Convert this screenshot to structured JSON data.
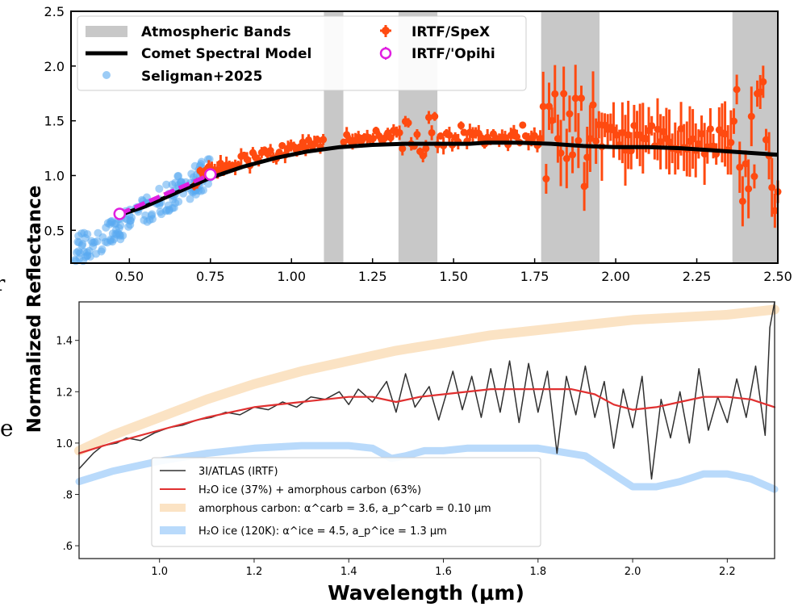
{
  "figure": {
    "ylabel": "Normalized Reflectance",
    "xlabel": "Wavelength (μm)",
    "edge_glyphs": [
      "r",
      "e"
    ]
  },
  "chart_data": [
    {
      "type": "scatter",
      "xlim": [
        0.32,
        2.5
      ],
      "ylim": [
        0.2,
        2.5
      ],
      "x_ticks": [
        "0.50",
        "0.75",
        "1.00",
        "1.25",
        "1.50",
        "1.75",
        "2.00",
        "2.25",
        "2.50"
      ],
      "y_ticks": [
        "0.5",
        "1.0",
        "1.5",
        "2.0",
        "2.5"
      ],
      "legend": {
        "placement": "top-left",
        "entries": [
          "Atmospheric Bands",
          "Comet Spectral Model",
          "Seligman+2025",
          "IRTF/SpeX",
          "IRTF/'Opihi"
        ]
      },
      "atmospheric_bands": [
        [
          1.1,
          1.16
        ],
        [
          1.33,
          1.45
        ],
        [
          1.77,
          1.95
        ],
        [
          2.36,
          2.5
        ]
      ],
      "comet_model": {
        "x": [
          0.47,
          0.55,
          0.65,
          0.75,
          0.85,
          0.95,
          1.05,
          1.15,
          1.25,
          1.35,
          1.45,
          1.55,
          1.6,
          1.7,
          1.8,
          1.9,
          2.0,
          2.1,
          2.2,
          2.3,
          2.4,
          2.5
        ],
        "y": [
          0.64,
          0.72,
          0.85,
          0.98,
          1.08,
          1.16,
          1.22,
          1.26,
          1.28,
          1.29,
          1.29,
          1.29,
          1.3,
          1.3,
          1.29,
          1.27,
          1.26,
          1.26,
          1.25,
          1.23,
          1.21,
          1.19
        ]
      },
      "opihi": {
        "x": [
          0.47,
          0.75
        ],
        "y": [
          0.65,
          1.01
        ],
        "color": "#e020e0"
      },
      "seligman_color": "#5aaaf0",
      "speX_color": "#ff4a10",
      "model_color": "#000000",
      "band_color": "#c8c8c8"
    },
    {
      "type": "line",
      "xlim": [
        0.83,
        2.3
      ],
      "ylim": [
        0.55,
        1.55
      ],
      "x_ticks": [
        "1.0",
        "1.2",
        "1.4",
        "1.6",
        "1.8",
        "2.0",
        "2.2"
      ],
      "y_ticks": [
        ".6",
        ".8",
        "1.0",
        "1.2",
        "1.4"
      ],
      "legend": {
        "placement": "bottom-left",
        "entries": [
          "3I/ATLAS (IRTF)",
          "H₂O ice (37%) + amorphous carbon (63%)",
          "amorphous carbon: α^carb = 3.6, a_p^carb = 0.10 μm",
          "H₂O ice (120K): α^ice = 4.5, a_p^ice = 1.3 μm"
        ]
      },
      "series": [
        {
          "name": "H₂O ice (37%) + amorphous carbon (63%)",
          "color": "#e03030",
          "x": [
            0.83,
            0.9,
            1.0,
            1.1,
            1.2,
            1.3,
            1.4,
            1.45,
            1.5,
            1.55,
            1.6,
            1.7,
            1.8,
            1.87,
            1.92,
            1.96,
            2.0,
            2.05,
            2.1,
            2.15,
            2.2,
            2.25,
            2.3
          ],
          "y": [
            0.96,
            1.0,
            1.05,
            1.1,
            1.14,
            1.16,
            1.18,
            1.18,
            1.16,
            1.18,
            1.19,
            1.21,
            1.21,
            1.21,
            1.19,
            1.15,
            1.13,
            1.14,
            1.16,
            1.18,
            1.18,
            1.17,
            1.14
          ]
        },
        {
          "name": "amorphous carbon",
          "color": "#fbe3c4",
          "x": [
            0.83,
            0.9,
            1.0,
            1.1,
            1.2,
            1.3,
            1.4,
            1.5,
            1.6,
            1.7,
            1.8,
            1.9,
            2.0,
            2.1,
            2.2,
            2.3
          ],
          "y": [
            0.97,
            1.03,
            1.1,
            1.17,
            1.23,
            1.28,
            1.32,
            1.36,
            1.39,
            1.42,
            1.44,
            1.46,
            1.48,
            1.49,
            1.5,
            1.52
          ]
        },
        {
          "name": "H₂O ice (120K)",
          "color": "#b9dafb",
          "x": [
            0.83,
            0.9,
            1.0,
            1.1,
            1.2,
            1.3,
            1.4,
            1.45,
            1.49,
            1.52,
            1.56,
            1.6,
            1.65,
            1.7,
            1.8,
            1.9,
            1.95,
            2.0,
            2.05,
            2.1,
            2.15,
            2.2,
            2.25,
            2.3
          ],
          "y": [
            0.85,
            0.89,
            0.93,
            0.96,
            0.98,
            0.99,
            0.99,
            0.98,
            0.94,
            0.95,
            0.97,
            0.97,
            0.98,
            0.98,
            0.98,
            0.95,
            0.89,
            0.83,
            0.83,
            0.85,
            0.88,
            0.88,
            0.86,
            0.82
          ]
        },
        {
          "name": "3I/ATLAS (IRTF)",
          "color": "#303030",
          "x": [
            0.83,
            0.86,
            0.88,
            0.91,
            0.93,
            0.96,
            0.99,
            1.02,
            1.05,
            1.08,
            1.11,
            1.14,
            1.17,
            1.2,
            1.23,
            1.26,
            1.29,
            1.32,
            1.35,
            1.38,
            1.4,
            1.42,
            1.45,
            1.48,
            1.5,
            1.52,
            1.54,
            1.57,
            1.59,
            1.62,
            1.64,
            1.66,
            1.68,
            1.7,
            1.72,
            1.74,
            1.76,
            1.78,
            1.8,
            1.82,
            1.84,
            1.86,
            1.88,
            1.9,
            1.92,
            1.94,
            1.96,
            1.98,
            2.0,
            2.02,
            2.04,
            2.06,
            2.08,
            2.1,
            2.12,
            2.14,
            2.16,
            2.18,
            2.2,
            2.22,
            2.24,
            2.26,
            2.28,
            2.29,
            2.3
          ],
          "y": [
            0.9,
            0.96,
            0.99,
            1.0,
            1.02,
            1.01,
            1.04,
            1.06,
            1.07,
            1.09,
            1.1,
            1.12,
            1.11,
            1.14,
            1.13,
            1.16,
            1.14,
            1.18,
            1.17,
            1.2,
            1.15,
            1.21,
            1.16,
            1.24,
            1.12,
            1.27,
            1.14,
            1.22,
            1.09,
            1.28,
            1.13,
            1.26,
            1.1,
            1.29,
            1.12,
            1.32,
            1.08,
            1.31,
            1.12,
            1.28,
            0.96,
            1.26,
            1.11,
            1.3,
            1.1,
            1.24,
            0.98,
            1.21,
            1.06,
            1.26,
            0.86,
            1.17,
            1.02,
            1.2,
            1.0,
            1.29,
            1.05,
            1.18,
            1.08,
            1.25,
            1.1,
            1.3,
            1.03,
            1.45,
            1.55
          ]
        }
      ]
    }
  ]
}
